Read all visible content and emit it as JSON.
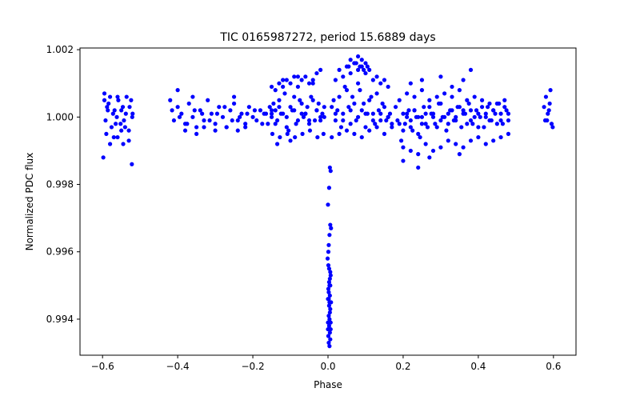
{
  "chart_data": {
    "type": "scatter",
    "title": "TIC 0165987272, period 15.6889 days",
    "xlabel": "Phase",
    "ylabel": "Normalized PDC flux",
    "xlim": [
      -0.66,
      0.66
    ],
    "ylim": [
      0.99293,
      1.00205
    ],
    "xticks": [
      -0.6,
      -0.4,
      -0.2,
      0.0,
      0.2,
      0.4,
      0.6
    ],
    "xtick_labels": [
      "−0.6",
      "−0.4",
      "−0.2",
      "0.0",
      "0.2",
      "0.4",
      "0.6"
    ],
    "yticks": [
      0.994,
      0.996,
      0.998,
      1.0,
      1.002
    ],
    "ytick_labels": [
      "0.994",
      "0.996",
      "0.998",
      "1.000",
      "1.002"
    ],
    "grid": false,
    "marker_color": "#0000ff",
    "series": [
      {
        "x": [
          -0.595,
          -0.588,
          -0.58,
          -0.572,
          -0.565,
          -0.558,
          -0.55,
          -0.543,
          -0.536,
          -0.528,
          -0.521,
          -0.592,
          -0.584,
          -0.576,
          -0.568,
          -0.56,
          -0.552,
          -0.546,
          -0.538,
          -0.53,
          -0.524,
          -0.59,
          -0.57,
          -0.55,
          -0.53,
          -0.586,
          -0.562,
          -0.54,
          -0.52,
          -0.598,
          -0.595,
          -0.58,
          -0.56,
          -0.545,
          -0.522,
          0.575,
          0.58,
          0.585,
          0.59,
          0.595,
          0.578,
          0.588,
          0.592,
          0.583,
          0.598,
          -0.42,
          -0.41,
          -0.4,
          -0.39,
          -0.38,
          -0.37,
          -0.36,
          -0.35,
          -0.34,
          -0.33,
          -0.32,
          -0.31,
          -0.3,
          -0.29,
          -0.28,
          -0.27,
          -0.26,
          -0.25,
          -0.24,
          -0.23,
          -0.22,
          -0.21,
          -0.2,
          -0.19,
          -0.18,
          -0.17,
          -0.16,
          -0.15,
          -0.14,
          -0.415,
          -0.395,
          -0.375,
          -0.355,
          -0.335,
          -0.315,
          -0.295,
          -0.275,
          -0.255,
          -0.235,
          -0.215,
          -0.195,
          -0.175,
          -0.155,
          -0.38,
          -0.35,
          -0.33,
          -0.3,
          -0.27,
          -0.24,
          -0.22,
          -0.4,
          -0.36,
          -0.25,
          -0.15,
          -0.14,
          -0.13,
          -0.12,
          -0.11,
          -0.1,
          -0.09,
          -0.08,
          -0.07,
          -0.06,
          -0.05,
          -0.04,
          -0.03,
          -0.02,
          -0.01,
          -0.145,
          -0.135,
          -0.125,
          -0.115,
          -0.105,
          -0.095,
          -0.085,
          -0.075,
          -0.065,
          -0.055,
          -0.045,
          -0.035,
          -0.025,
          -0.015,
          -0.148,
          -0.128,
          -0.108,
          -0.088,
          -0.068,
          -0.048,
          -0.028,
          -0.012,
          -0.14,
          -0.13,
          -0.12,
          -0.11,
          -0.1,
          -0.09,
          -0.08,
          -0.07,
          -0.06,
          -0.05,
          -0.04,
          -0.03,
          -0.165,
          -0.15,
          -0.135,
          -0.12,
          -0.1,
          -0.08,
          -0.06,
          -0.04,
          -0.02,
          -0.01,
          -0.15,
          -0.13,
          -0.11,
          -0.09,
          -0.07,
          -0.05,
          -0.03,
          -0.02,
          0.01,
          0.02,
          0.03,
          0.04,
          0.05,
          0.06,
          0.07,
          0.08,
          0.09,
          0.1,
          0.11,
          0.12,
          0.13,
          0.14,
          0.15,
          0.16,
          0.17,
          0.015,
          0.025,
          0.035,
          0.045,
          0.055,
          0.065,
          0.075,
          0.085,
          0.095,
          0.105,
          0.115,
          0.125,
          0.135,
          0.145,
          0.155,
          0.165,
          0.02,
          0.04,
          0.06,
          0.08,
          0.1,
          0.12,
          0.14,
          0.16,
          0.03,
          0.05,
          0.07,
          0.09,
          0.11,
          0.13,
          0.15,
          0.01,
          0.03,
          0.05,
          0.07,
          0.09,
          0.11,
          0.13,
          0.15,
          0.17,
          0.06,
          0.075,
          0.08,
          0.09,
          0.1,
          0.055,
          0.07,
          0.085,
          0.095,
          0.105,
          0.02,
          0.04,
          0.06,
          0.08,
          0.1,
          0.12,
          0.14,
          0.16,
          0.18,
          0.19,
          0.2,
          0.21,
          0.22,
          0.23,
          0.24,
          0.25,
          0.26,
          0.27,
          0.28,
          0.29,
          0.3,
          0.31,
          0.32,
          0.33,
          0.34,
          0.35,
          0.36,
          0.37,
          0.38,
          0.39,
          0.4,
          0.41,
          0.42,
          0.43,
          0.44,
          0.45,
          0.46,
          0.47,
          0.48,
          0.185,
          0.195,
          0.205,
          0.215,
          0.225,
          0.235,
          0.245,
          0.255,
          0.265,
          0.275,
          0.285,
          0.295,
          0.305,
          0.315,
          0.325,
          0.335,
          0.345,
          0.355,
          0.365,
          0.375,
          0.385,
          0.395,
          0.405,
          0.415,
          0.425,
          0.435,
          0.445,
          0.455,
          0.465,
          0.475,
          0.19,
          0.21,
          0.23,
          0.25,
          0.27,
          0.29,
          0.31,
          0.33,
          0.35,
          0.37,
          0.39,
          0.41,
          0.43,
          0.45,
          0.47,
          0.2,
          0.22,
          0.24,
          0.26,
          0.28,
          0.3,
          0.32,
          0.34,
          0.36,
          0.38,
          0.4,
          0.42,
          0.44,
          0.46,
          0.48,
          0.2,
          0.21,
          0.22,
          0.23,
          0.24,
          0.25,
          0.26,
          0.28,
          0.3,
          0.32,
          0.34,
          0.36,
          0.38,
          0.4,
          0.42,
          0.44,
          0.46,
          0.48,
          0.22,
          0.25,
          0.3,
          0.33,
          0.36,
          0.38,
          0.2,
          0.24,
          0.35,
          0.27,
          0.005,
          0.007,
          0.003,
          0.0,
          0.006,
          0.008,
          0.004,
          0.002,
          0.001,
          -0.001,
          0.003,
          0.005,
          0.006,
          0.002,
          0.0,
          0.004,
          0.007,
          0.003,
          0.001,
          0.005,
          0.008,
          0.006,
          0.002,
          0.004,
          0.0,
          0.003,
          0.007,
          0.005,
          0.001,
          0.006,
          0.002,
          0.004,
          0.003,
          0.005,
          0.0,
          0.007,
          0.002,
          0.004,
          0.006,
          0.001
        ],
        "y": [
          1.0007,
          1.0003,
          1.0006,
          1.0001,
          0.9998,
          1.0005,
          1.0002,
          0.9999,
          1.0006,
          1.0003,
          1.0,
          0.9999,
          1.0004,
          0.9997,
          1.0002,
          1.0006,
          0.9998,
          1.0003,
          1.0001,
          0.9996,
          1.0005,
          0.9995,
          0.9994,
          0.9996,
          0.9993,
          1.0002,
          1.0,
          0.9997,
          1.0001,
          0.9988,
          1.0005,
          0.9992,
          0.9994,
          0.9992,
          0.9986,
          1.0003,
          1.0006,
          1.0001,
          1.0004,
          0.9998,
          0.9999,
          1.0002,
          1.0008,
          0.9999,
          0.9997,
          1.0005,
          0.9999,
          1.0003,
          1.0001,
          0.9998,
          1.0004,
          1.0,
          0.9997,
          1.0002,
          0.9999,
          1.0005,
          1.0001,
          0.9998,
          1.0003,
          1.0,
          0.9997,
          1.0002,
          1.0004,
          0.9999,
          1.0001,
          0.9998,
          1.0003,
          1.0,
          0.9999,
          1.0002,
          1.0001,
          0.9998,
          1.0,
          1.0002,
          1.0002,
          1.0,
          0.9998,
          1.0002,
          1.0001,
          0.9999,
          1.0001,
          1.0003,
          0.9999,
          1.0,
          1.0001,
          1.0002,
          0.9998,
          1.0003,
          0.9996,
          0.9995,
          0.9997,
          0.9996,
          0.9997,
          0.9996,
          0.9997,
          1.0008,
          1.0006,
          1.0006,
          1.0002,
          0.9998,
          1.0005,
          1.0001,
          0.9997,
          1.0003,
          1.0006,
          0.9999,
          1.0004,
          1.0001,
          0.9998,
          1.0005,
          1.0002,
          0.9999,
          1.0003,
          1.0004,
          0.9999,
          1.0001,
          1.0007,
          0.9996,
          1.0002,
          0.9998,
          1.0005,
          1.0,
          1.0003,
          1.0006,
          0.9999,
          1.0004,
          1.0001,
          0.9995,
          0.9994,
          0.9995,
          0.9994,
          0.9995,
          0.9996,
          0.9994,
          0.9995,
          1.0008,
          1.001,
          1.0009,
          1.0011,
          1.001,
          1.0012,
          1.0009,
          1.0011,
          1.0012,
          1.001,
          1.0011,
          1.0013,
          1.0001,
          1.0009,
          0.9992,
          1.0011,
          0.9993,
          1.0012,
          1.0001,
          1.001,
          1.0014,
          1.0,
          1.0001,
          1.0003,
          1.0,
          1.0002,
          1.0001,
          0.9999,
          1.0002,
          1.0,
          1.0003,
          0.9999,
          1.0006,
          1.0001,
          1.0008,
          0.9998,
          1.0004,
          1.001,
          1.0002,
          0.9997,
          1.0005,
          1.0001,
          1.0007,
          0.9999,
          1.0003,
          1.0,
          0.9998,
          1.0005,
          1.0002,
          0.9997,
          1.0009,
          1.0003,
          1.0006,
          0.9999,
          1.0008,
          1.0004,
          1.0001,
          1.0006,
          0.9998,
          1.0002,
          1.0004,
          0.9999,
          1.0001,
          1.0011,
          1.0012,
          1.0013,
          1.0014,
          1.0013,
          1.0011,
          1.001,
          1.0009,
          1.0014,
          1.0015,
          1.0016,
          1.0015,
          1.0014,
          1.0012,
          1.0011,
          0.9994,
          0.9995,
          0.9996,
          0.9995,
          0.9994,
          0.9996,
          0.9997,
          0.9995,
          0.9997,
          1.0017,
          1.0016,
          1.0018,
          1.0017,
          1.0016,
          1.0015,
          1.0016,
          1.0015,
          1.0014,
          1.0015,
          1.0001,
          0.9999,
          1.0002,
          1.0,
          1.0001,
          0.9999,
          1.0001,
          1.0,
          1.0003,
          0.9998,
          0.9996,
          1.0001,
          0.9997,
          1.0002,
          0.9995,
          1.0,
          0.9998,
          1.0003,
          1.0001,
          0.9997,
          1.0004,
          1.0,
          0.9998,
          1.0002,
          0.9999,
          1.0003,
          1.0001,
          0.9998,
          1.0002,
          1.0,
          0.9997,
          1.0003,
          1.0001,
          0.9999,
          1.0002,
          0.9998,
          1.0001,
          1.0003,
          0.9999,
          0.9999,
          0.9993,
          0.9998,
          1.0002,
          0.9996,
          1.0,
          0.9994,
          1.0003,
          0.9997,
          1.0001,
          0.9998,
          1.0004,
          1.0,
          0.9996,
          1.0002,
          0.9999,
          1.0003,
          0.9997,
          1.0001,
          1.0004,
          0.9998,
          1.0002,
          1.0,
          0.9997,
          1.0003,
          0.9999,
          1.0001,
          1.0004,
          0.9998,
          1.0002,
          1.0005,
          1.0007,
          1.0006,
          1.0008,
          1.0005,
          1.0006,
          1.0007,
          1.0006,
          1.0008,
          1.0005,
          1.0006,
          1.0005,
          1.0004,
          1.0004,
          1.0005,
          0.9991,
          0.999,
          0.9989,
          0.9992,
          0.999,
          0.9991,
          0.9993,
          0.9992,
          0.9991,
          0.9993,
          0.9994,
          0.9992,
          0.9993,
          0.9994,
          0.9995,
          1.0001,
          1.0,
          0.9999,
          1.0002,
          1.0,
          0.9998,
          1.0001,
          1.0,
          0.9999,
          1.0001,
          1.0,
          1.0002,
          0.9999,
          1.0001,
          1.0,
          1.0002,
          0.9999,
          1.0001,
          1.001,
          1.0011,
          1.0012,
          1.0009,
          1.0011,
          1.0014,
          0.9987,
          0.9985,
          0.9989,
          0.9988,
          0.9985,
          0.9984,
          0.9979,
          0.9974,
          0.9968,
          0.9967,
          0.9965,
          0.9962,
          0.996,
          0.9958,
          0.9955,
          0.9952,
          0.995,
          0.9948,
          0.9946,
          0.9945,
          0.9953,
          0.9951,
          0.9949,
          0.9947,
          0.9945,
          0.9943,
          0.9941,
          0.994,
          0.9939,
          0.9938,
          0.9937,
          0.9936,
          0.9935,
          0.9934,
          0.9933,
          0.9932,
          0.9944,
          0.9942,
          0.9937,
          0.9939,
          0.9946,
          0.995,
          0.9954,
          0.9956
        ]
      }
    ]
  }
}
